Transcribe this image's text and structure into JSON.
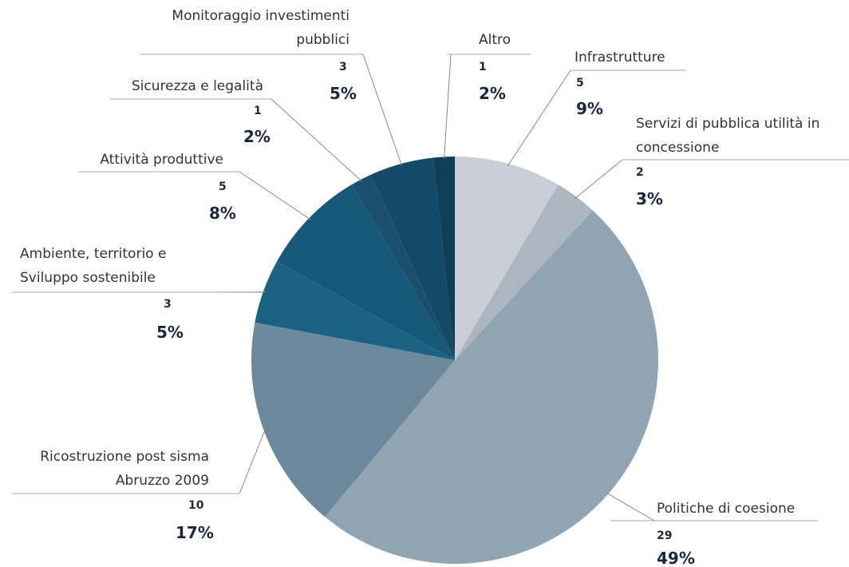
{
  "chart_data": {
    "type": "pie",
    "categories": [
      "Infrastrutture",
      "Servizi di pubblica utilità in\nconcessione",
      "Politiche di coesione",
      "Ricostruzione post sisma\nAbruzzo 2009",
      "Ambiente, territorio e\nSviluppo  sostenibile",
      "Attività produttive",
      "Sicurezza e legalità",
      "Monitoraggio investimenti\npubblici",
      "Altro"
    ],
    "values": [
      5,
      2,
      29,
      10,
      3,
      5,
      1,
      3,
      1
    ],
    "percentages": [
      9,
      3,
      49,
      17,
      5,
      8,
      2,
      5,
      2
    ],
    "percentage_labels": [
      "9%",
      "3%",
      "49%",
      "17%",
      "5%",
      "8%",
      "2%",
      "5%",
      "2%"
    ],
    "colors": [
      "#c8cdd6",
      "#abb6bf",
      "#91a4b2",
      "#6b889c",
      "#1a6282",
      "#155878",
      "#1b4f6f",
      "#124a67",
      "#0f3e57"
    ]
  }
}
